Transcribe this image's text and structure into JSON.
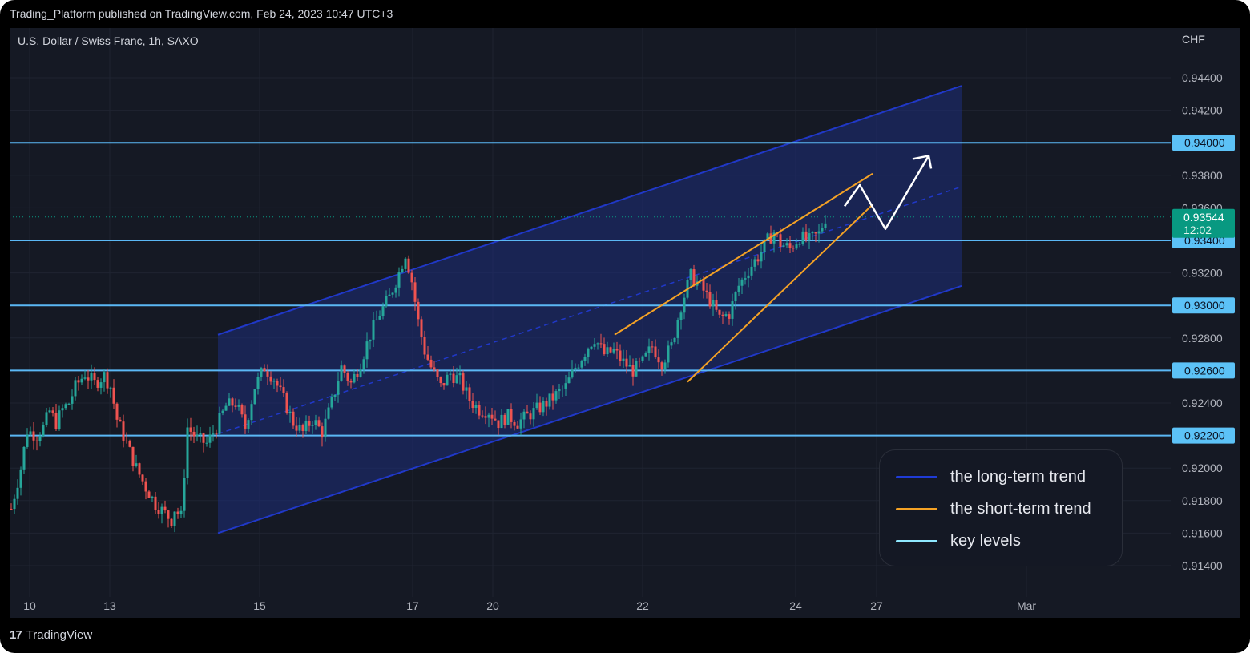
{
  "header": {
    "published": "Trading_Platform published on TradingView.com, Feb 24, 2023 10:47 UTC+3"
  },
  "footer": {
    "brand": "TradingView"
  },
  "legend": {
    "items": [
      {
        "label": "the long-term trend",
        "color": "#1f3bd6"
      },
      {
        "label": "the short-term trend",
        "color": "#f5a225"
      },
      {
        "label": "key levels",
        "color": "#8fe8ff"
      }
    ]
  },
  "colors": {
    "background": "#151924",
    "candle_up": "#26a69a",
    "candle_down": "#ef5350",
    "key_level": "#5bb8f5",
    "channel_line": "#2038c8",
    "channel_fill": "#1e2d7a",
    "short_trend": "#f5a225",
    "projection": "#ffffff",
    "price_tag": "#089981"
  },
  "chart_data": {
    "type": "candlestick",
    "symbol_title": "U.S. Dollar / Swiss Franc, 1h, SAXO",
    "currency_label": "CHF",
    "ylim": [
      0.9128,
      0.9464
    ],
    "y_ticks": [
      "0.94400",
      "0.94200",
      "0.93800",
      "0.93600",
      "0.93200",
      "0.92800",
      "0.92400",
      "0.92000",
      "0.91800",
      "0.91600",
      "0.91400"
    ],
    "x_ticks": [
      "10",
      "13",
      "15",
      "17",
      "20",
      "22",
      "24",
      "27",
      "Mar"
    ],
    "key_levels": [
      "0.94000",
      "0.93400",
      "0.93000",
      "0.92600",
      "0.92200"
    ],
    "last_price": "0.93544",
    "countdown": "12:02",
    "price_path": [
      [
        0,
        0.9175
      ],
      [
        3,
        0.92
      ],
      [
        5,
        0.9223
      ],
      [
        8,
        0.922
      ],
      [
        10,
        0.9225
      ],
      [
        12,
        0.9235
      ],
      [
        14,
        0.9228
      ],
      [
        16,
        0.9236
      ],
      [
        18,
        0.924
      ],
      [
        20,
        0.925
      ],
      [
        23,
        0.9258
      ],
      [
        26,
        0.9252
      ],
      [
        29,
        0.9257
      ],
      [
        31,
        0.925
      ],
      [
        33,
        0.923
      ],
      [
        36,
        0.9215
      ],
      [
        39,
        0.92
      ],
      [
        42,
        0.9188
      ],
      [
        45,
        0.9178
      ],
      [
        48,
        0.9172
      ],
      [
        50,
        0.9168
      ],
      [
        51,
        0.9175
      ],
      [
        53,
        0.917
      ],
      [
        55,
        0.9225
      ],
      [
        58,
        0.9218
      ],
      [
        61,
        0.9215
      ],
      [
        64,
        0.9225
      ],
      [
        67,
        0.9238
      ],
      [
        70,
        0.924
      ],
      [
        73,
        0.9225
      ],
      [
        76,
        0.925
      ],
      [
        79,
        0.9262
      ],
      [
        82,
        0.9255
      ],
      [
        85,
        0.9242
      ],
      [
        88,
        0.9228
      ],
      [
        91,
        0.9222
      ],
      [
        94,
        0.923
      ],
      [
        97,
        0.9222
      ],
      [
        100,
        0.924
      ],
      [
        103,
        0.9262
      ],
      [
        106,
        0.9252
      ],
      [
        109,
        0.9265
      ],
      [
        112,
        0.9282
      ],
      [
        115,
        0.9295
      ],
      [
        118,
        0.9305
      ],
      [
        121,
        0.932
      ],
      [
        123,
        0.9332
      ],
      [
        125,
        0.9315
      ],
      [
        127,
        0.929
      ],
      [
        129,
        0.9272
      ],
      [
        131,
        0.9262
      ],
      [
        134,
        0.925
      ],
      [
        137,
        0.9258
      ],
      [
        140,
        0.9254
      ],
      [
        143,
        0.9242
      ],
      [
        146,
        0.9236
      ],
      [
        149,
        0.9235
      ],
      [
        152,
        0.9228
      ],
      [
        155,
        0.9232
      ],
      [
        158,
        0.9228
      ],
      [
        161,
        0.9232
      ],
      [
        164,
        0.9236
      ],
      [
        167,
        0.924
      ],
      [
        170,
        0.9245
      ],
      [
        173,
        0.925
      ],
      [
        176,
        0.9262
      ],
      [
        178,
        0.9268
      ],
      [
        180,
        0.9275
      ],
      [
        182,
        0.928
      ],
      [
        185,
        0.927
      ],
      [
        188,
        0.9272
      ],
      [
        191,
        0.9265
      ],
      [
        194,
        0.926
      ],
      [
        197,
        0.9265
      ],
      [
        200,
        0.9275
      ],
      [
        203,
        0.9265
      ],
      [
        206,
        0.9275
      ],
      [
        209,
        0.93
      ],
      [
        212,
        0.9318
      ],
      [
        215,
        0.9312
      ],
      [
        218,
        0.9303
      ],
      [
        221,
        0.9292
      ],
      [
        224,
        0.9295
      ],
      [
        227,
        0.9312
      ],
      [
        230,
        0.9322
      ],
      [
        233,
        0.933
      ],
      [
        236,
        0.934
      ],
      [
        238,
        0.9345
      ],
      [
        240,
        0.9338
      ],
      [
        243,
        0.9335
      ],
      [
        246,
        0.9342
      ],
      [
        249,
        0.934
      ],
      [
        252,
        0.9344
      ],
      [
        254,
        0.9354
      ]
    ],
    "long_term_channel": {
      "upper": [
        [
          0.9282,
          0.9435
        ]
      ],
      "lower": [
        [
          0.916,
          0.9312
        ]
      ],
      "midline": [
        [
          0.9221,
          0.9373
        ]
      ]
    },
    "short_term_trend": {
      "upper": [
        0.9282,
        0.9381
      ],
      "lower": [
        0.9253,
        0.9362
      ]
    },
    "projection_path": [
      0.9361,
      0.9374,
      0.9347,
      0.9392
    ]
  }
}
